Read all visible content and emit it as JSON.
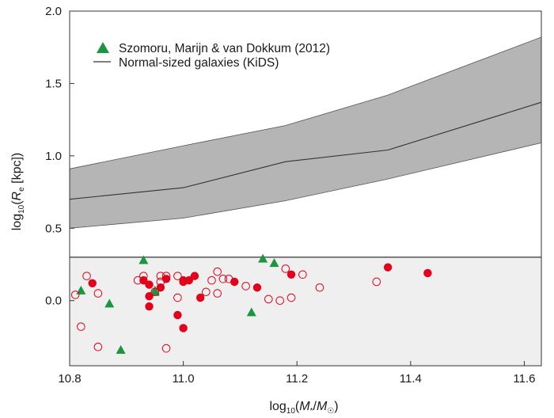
{
  "chart_data": {
    "type": "scatter",
    "xlabel": "log10(M*/M☉)",
    "ylabel": "log10(Re [kpc])",
    "xlim": [
      10.8,
      11.63
    ],
    "ylim": [
      -0.45,
      2.0
    ],
    "xticks": [
      "10.8",
      "11.0",
      "11.2",
      "11.4",
      "11.6"
    ],
    "yticks": [
      "0.0",
      "0.5",
      "1.0",
      "1.5",
      "2.0"
    ],
    "threshold_line": 0.3,
    "legend_position": "top-left",
    "legend": [
      {
        "label": "Szomoru, Marijn & van Dokkum (2012)",
        "marker": "triangle",
        "color": "#1a9641"
      },
      {
        "label": "Normal-sized galaxies (KiDS)",
        "marker": "line",
        "color": "#333333"
      }
    ],
    "colors": {
      "band_fill": "#b5b5b5",
      "lower_region": "#efefef",
      "red": "#e2001a",
      "green": "#1a9641"
    },
    "band": {
      "x": [
        10.8,
        11.0,
        11.18,
        11.36,
        11.63
      ],
      "median": [
        0.7,
        0.78,
        0.96,
        1.04,
        1.37
      ],
      "upper": [
        0.91,
        1.07,
        1.21,
        1.42,
        1.82
      ],
      "lower": [
        0.5,
        0.57,
        0.69,
        0.84,
        1.09
      ]
    },
    "series": [
      {
        "name": "Szomoru, Marijn & van Dokkum (2012)",
        "marker": "triangle",
        "points": [
          [
            10.82,
            0.07
          ],
          [
            10.87,
            -0.02
          ],
          [
            10.89,
            -0.34
          ],
          [
            10.93,
            0.28
          ],
          [
            10.95,
            0.06
          ],
          [
            10.95,
            0.07
          ],
          [
            11.14,
            0.29
          ],
          [
            11.16,
            0.26
          ],
          [
            11.12,
            -0.08
          ]
        ]
      },
      {
        "marker": "circle-filled",
        "points": [
          [
            10.84,
            0.12
          ],
          [
            10.93,
            0.14
          ],
          [
            10.94,
            0.11
          ],
          [
            10.94,
            0.03
          ],
          [
            10.94,
            -0.04
          ],
          [
            10.96,
            0.09
          ],
          [
            10.97,
            0.15
          ],
          [
            10.99,
            -0.1
          ],
          [
            11.0,
            -0.19
          ],
          [
            11.0,
            0.14
          ],
          [
            11.0,
            0.13
          ],
          [
            11.01,
            0.14
          ],
          [
            11.02,
            0.17
          ],
          [
            11.03,
            0.02
          ],
          [
            11.09,
            0.13
          ],
          [
            11.13,
            0.09
          ],
          [
            11.19,
            0.18
          ],
          [
            11.36,
            0.23
          ],
          [
            11.43,
            0.19
          ]
        ]
      },
      {
        "marker": "circle-open",
        "points": [
          [
            10.81,
            0.04
          ],
          [
            10.82,
            -0.18
          ],
          [
            10.83,
            0.17
          ],
          [
            10.85,
            0.05
          ],
          [
            10.85,
            -0.32
          ],
          [
            10.92,
            0.14
          ],
          [
            10.93,
            0.17
          ],
          [
            10.95,
            0.06
          ],
          [
            10.96,
            0.17
          ],
          [
            10.96,
            0.13
          ],
          [
            10.97,
            0.17
          ],
          [
            10.97,
            -0.33
          ],
          [
            10.99,
            0.02
          ],
          [
            10.99,
            0.17
          ],
          [
            11.04,
            0.06
          ],
          [
            11.05,
            0.14
          ],
          [
            11.06,
            0.2
          ],
          [
            11.06,
            0.05
          ],
          [
            11.07,
            0.15
          ],
          [
            11.08,
            0.15
          ],
          [
            11.11,
            0.1
          ],
          [
            11.15,
            0.01
          ],
          [
            11.17,
            0.0
          ],
          [
            11.18,
            0.22
          ],
          [
            11.19,
            0.02
          ],
          [
            11.21,
            0.18
          ],
          [
            11.24,
            0.09
          ],
          [
            11.34,
            0.13
          ]
        ]
      }
    ]
  }
}
